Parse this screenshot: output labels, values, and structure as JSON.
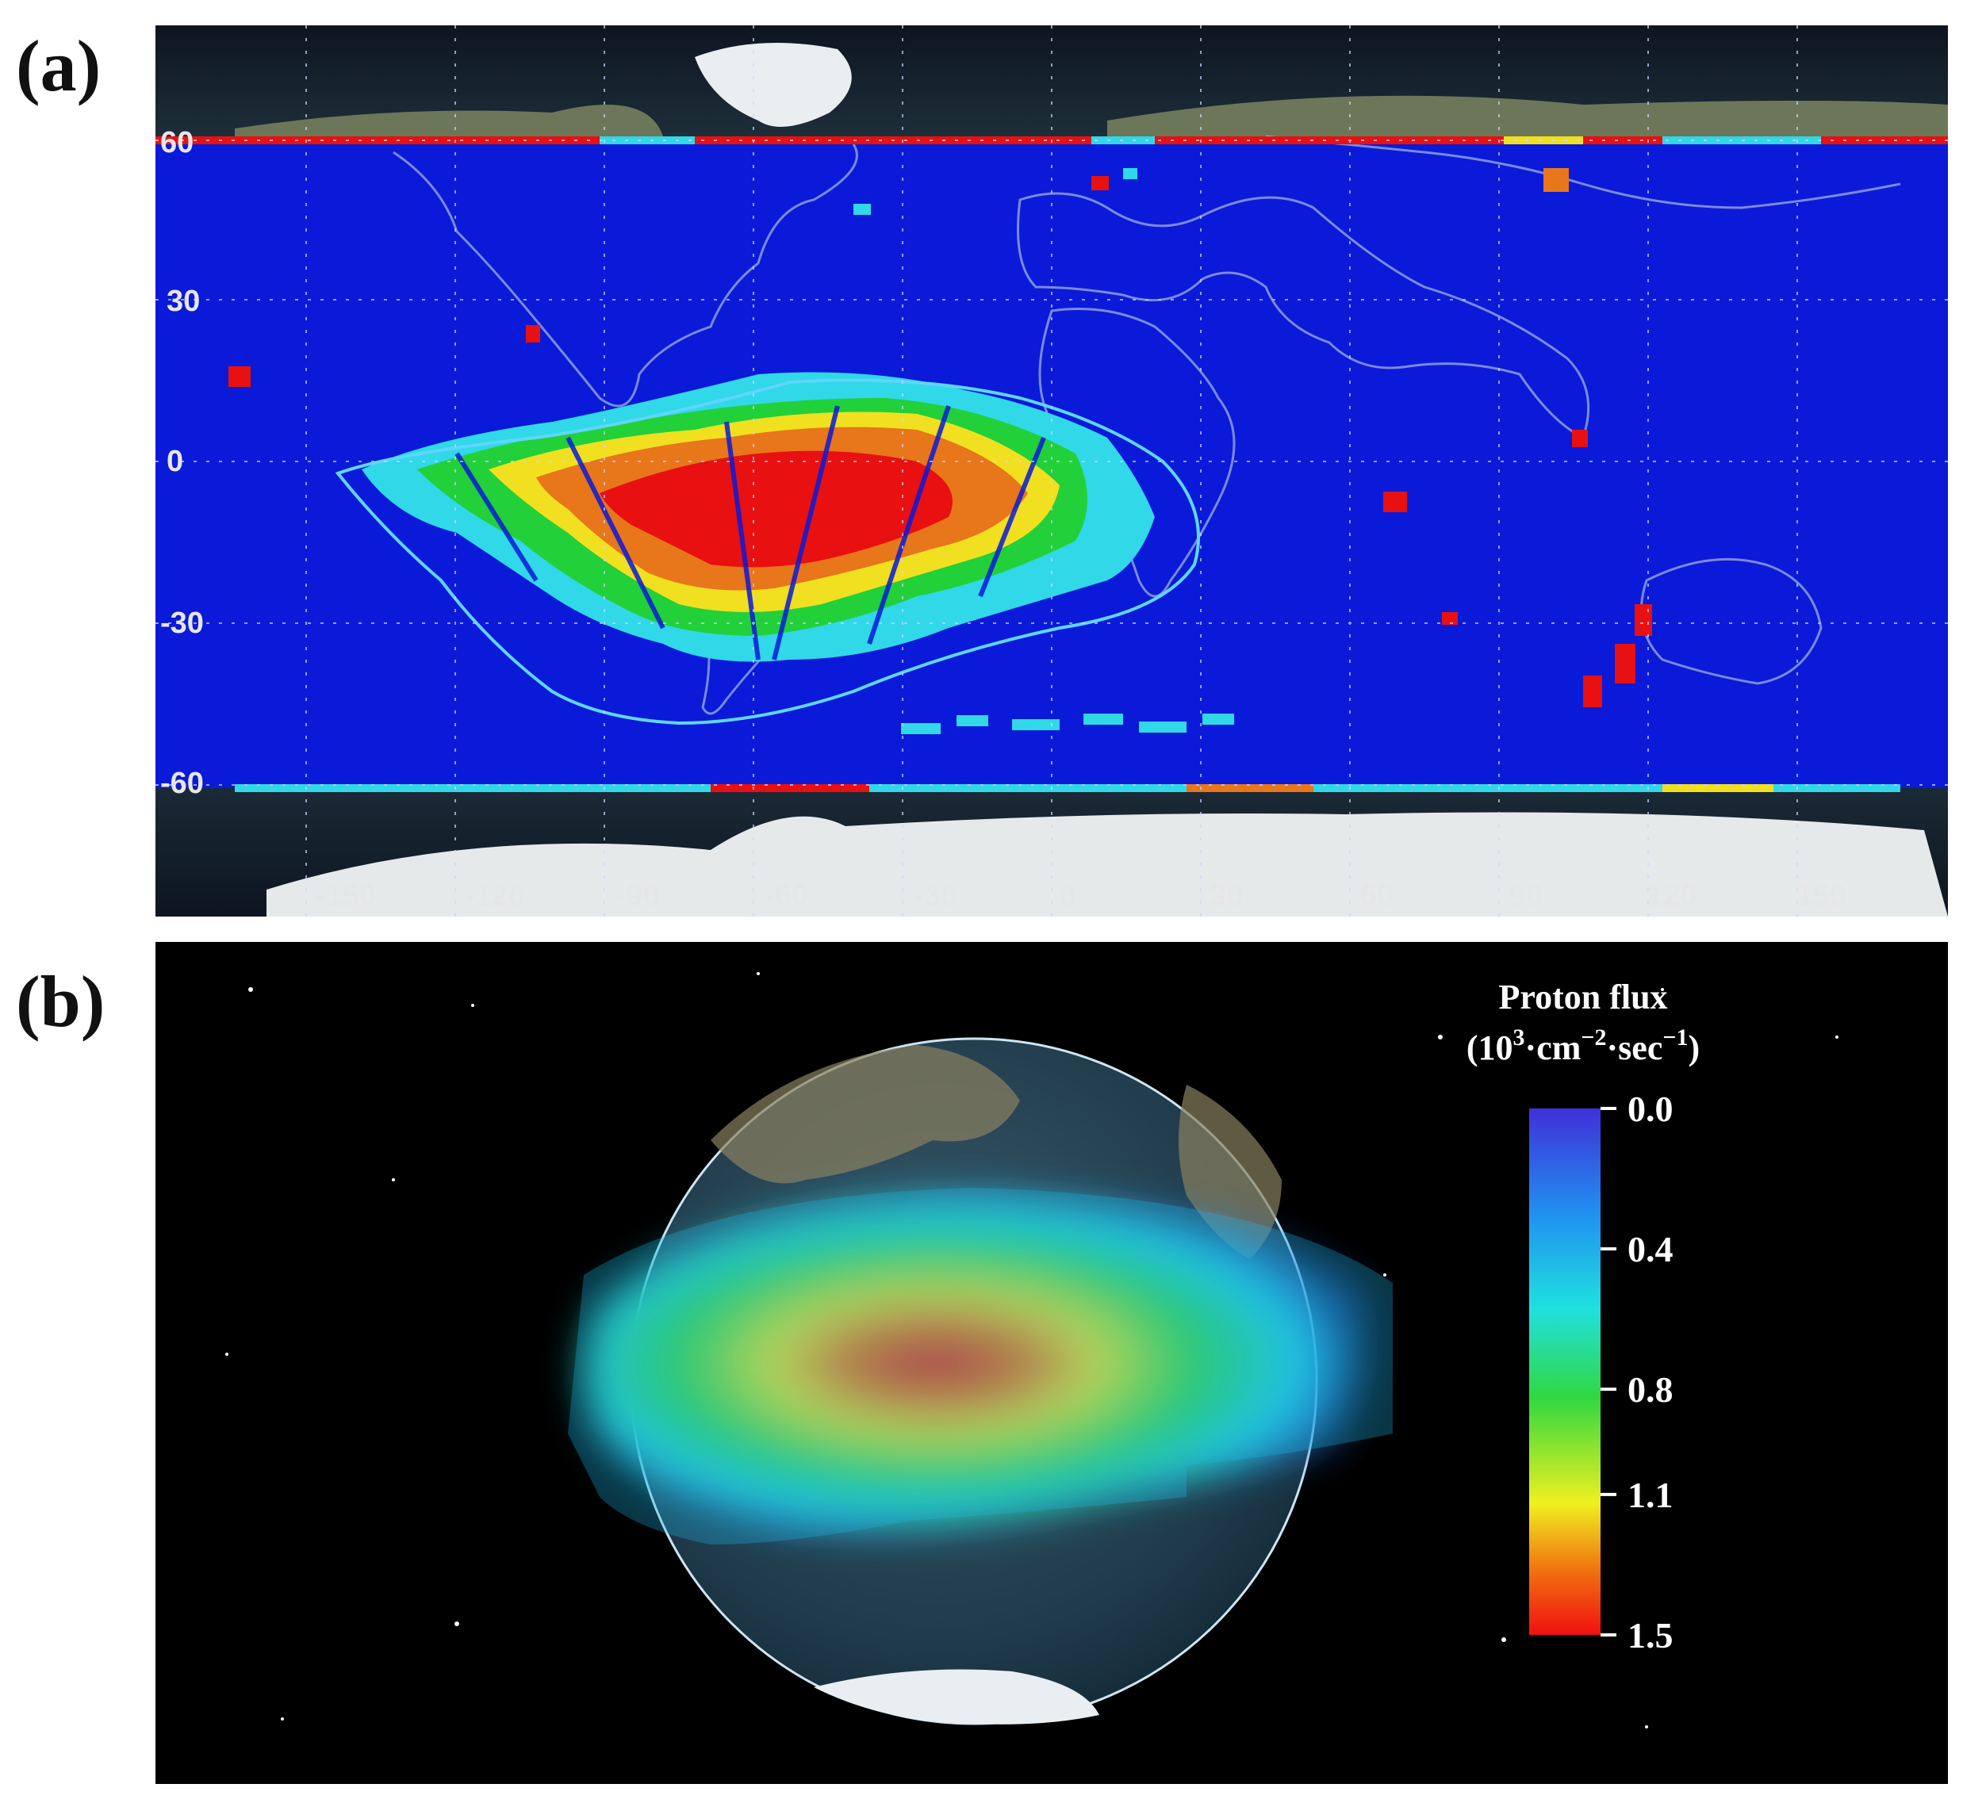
{
  "panels": {
    "a": {
      "label": "(a)",
      "lat_ticks": [
        "60",
        "30",
        "0",
        "-30",
        "-60"
      ],
      "lon_ticks": [
        "-150",
        "-120",
        "-90",
        "-60",
        "-30",
        "0",
        "30",
        "60",
        "90",
        "120",
        "150"
      ]
    },
    "b": {
      "label": "(b)",
      "colorbar": {
        "title_line1": "Proton flux",
        "title_line2_base": "(10",
        "title_line2_exp": "3",
        "title_line2_mid": "·cm",
        "title_line2_exp2": "−2",
        "title_line2_mid2": "·sec",
        "title_line2_exp3": "−1",
        "title_line2_end": ")",
        "ticks": [
          "0.0",
          "0.4",
          "0.8",
          "1.1",
          "1.5"
        ],
        "tick_values": [
          0.0,
          0.4,
          0.8,
          1.1,
          1.5
        ],
        "min": 0.0,
        "max": 1.5
      }
    }
  },
  "colors": {
    "map_background": "#0a1ad8",
    "anomaly_outline": "#5fd6ff",
    "space": "#000000"
  }
}
